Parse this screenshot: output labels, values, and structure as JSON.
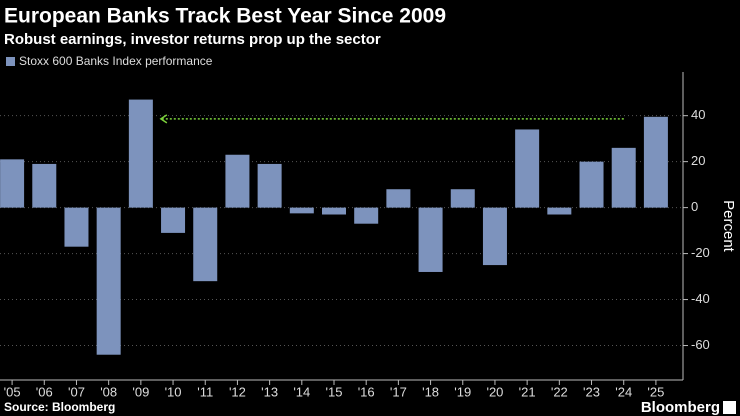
{
  "chart_data": {
    "type": "bar",
    "title": "European Banks Track Best Year Since 2009",
    "subtitle": "Robust earnings, investor returns prop up the sector",
    "legend": "Stoxx 600 Banks Index performance",
    "y_label": "Percent",
    "source": "Source: Bloomberg",
    "brand": "Bloomberg",
    "color": "#7d93bd",
    "annotation_color": "#7bd13b",
    "categories": [
      "'05",
      "'06",
      "'07",
      "'08",
      "'09",
      "'10",
      "'11",
      "'12",
      "'13",
      "'14",
      "'15",
      "'16",
      "'17",
      "'18",
      "'19",
      "'20",
      "'21",
      "'22",
      "'23",
      "'24",
      "'25"
    ],
    "values": [
      21,
      19,
      -17,
      -64,
      47,
      -11,
      -32,
      23,
      19,
      -2.5,
      -3,
      -7,
      8,
      -28,
      8,
      -25,
      34,
      -3,
      20,
      26,
      39.5
    ],
    "ylim": [
      -75,
      59
    ],
    "yticks": [
      -60,
      -40,
      -20,
      0,
      20,
      40
    ],
    "grid": true
  }
}
